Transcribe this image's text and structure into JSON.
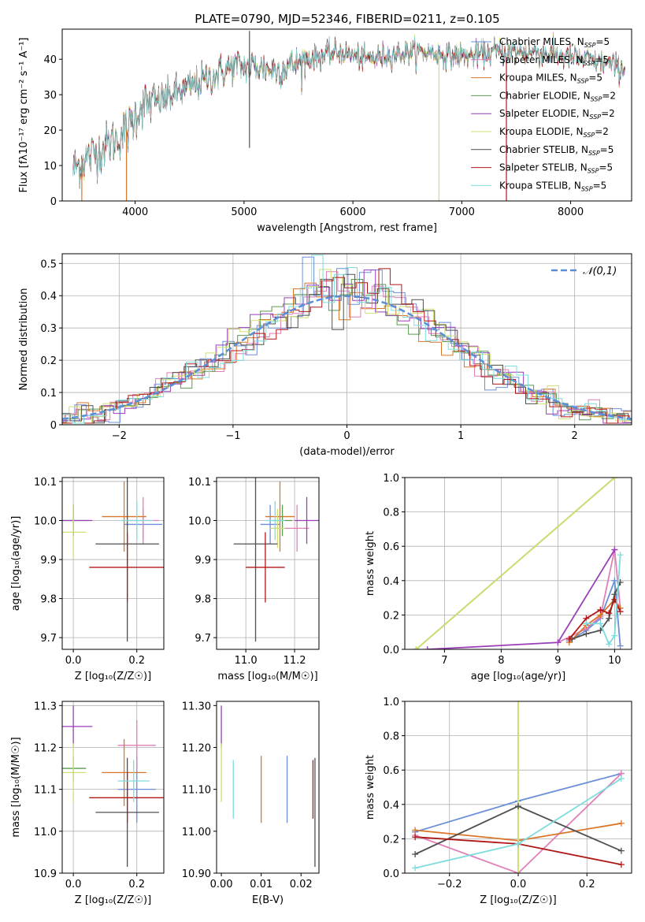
{
  "title": "PLATE=0790, MJD=52346, FIBERID=0211, z=0.105",
  "colors": {
    "Chabrier MILES": "#6a8fd8",
    "Salpeter MILES": "#e07fb8",
    "Kroupa MILES": "#d9762a",
    "Chabrier ELODIE": "#5a9a50",
    "Salpeter ELODIE": "#9a3fb8",
    "Kroupa ELODIE": "#cfe070",
    "Chabrier STELIB": "#505050",
    "Salpeter STELIB": "#b01818",
    "Kroupa STELIB": "#7fdcdc",
    "gauss": "#5b8ed6",
    "grid": "#b0b0b0"
  },
  "chart_data": [
    {
      "type": "line",
      "panel": "spectrum",
      "xlabel": "wavelength [Angstrom, rest frame]",
      "ylabel": "Flux [fλ10⁻¹⁷ erg cm⁻² s⁻¹ A⁻¹]",
      "xlim": [
        3330,
        8560
      ],
      "ylim": [
        0,
        48.5
      ],
      "xticks": [
        4000,
        5000,
        6000,
        7000,
        8000
      ],
      "yticks": [
        0,
        10,
        20,
        30,
        40
      ],
      "grid": false,
      "legend_position": "upper-right",
      "series": [
        {
          "name": "Chabrier MILES",
          "sub": "SSP",
          "nssp": "=5"
        },
        {
          "name": "Salpeter MILES",
          "sub": "SSP",
          "nssp": "=5"
        },
        {
          "name": "Kroupa MILES",
          "sub": "SSP",
          "nssp": "=5"
        },
        {
          "name": "Chabrier ELODIE",
          "sub": "SSP",
          "nssp": "=2"
        },
        {
          "name": "Salpeter ELODIE",
          "sub": "SSP",
          "nssp": "=2"
        },
        {
          "name": "Kroupa ELODIE",
          "sub": "SSP",
          "nssp": "=2"
        },
        {
          "name": "Chabrier STELIB",
          "sub": "SSP",
          "nssp": "=5"
        },
        {
          "name": "Salpeter STELIB",
          "sub": "SSP",
          "nssp": "=5"
        },
        {
          "name": "Kroupa STELIB",
          "sub": "SSP",
          "nssp": "=5"
        }
      ],
      "continuum": {
        "x": [
          3430,
          3550,
          3700,
          3850,
          3950,
          4050,
          4200,
          4350,
          4500,
          4700,
          4900,
          5100,
          5300,
          5500,
          5700,
          5900,
          6100,
          6300,
          6500,
          6700,
          6900,
          7100,
          7300,
          7500,
          7700,
          7900,
          8100,
          8300,
          8500
        ],
        "y": [
          9,
          12,
          15,
          18,
          21,
          27,
          28,
          30,
          32,
          35,
          38,
          38,
          37,
          39,
          41,
          42,
          40,
          41,
          42,
          42,
          41,
          41,
          42,
          42,
          42,
          41,
          40,
          39,
          37
        ]
      },
      "spikes": [
        {
          "x": 5050,
          "y0": 15,
          "y1": 48,
          "series": "Chabrier STELIB"
        },
        {
          "x": 6790,
          "y0": 0,
          "y1": 41,
          "series": "Kroupa ELODIE"
        },
        {
          "x": 7410,
          "y0": 0,
          "y1": 40,
          "series": "Salpeter STELIB"
        },
        {
          "x": 3920,
          "y0": 0,
          "y1": 20,
          "series": "Kroupa MILES"
        },
        {
          "x": 3510,
          "y0": 0,
          "y1": 10,
          "series": "Kroupa MILES"
        }
      ]
    },
    {
      "type": "histogram",
      "panel": "residuals",
      "xlabel": "(data-model)/error",
      "ylabel": "Normed distribution",
      "xlim": [
        -2.5,
        2.5
      ],
      "ylim": [
        0,
        0.53
      ],
      "xticks": [
        -2,
        -1,
        0,
        1,
        2
      ],
      "yticks": [
        0.0,
        0.1,
        0.2,
        0.3,
        0.4,
        0.5
      ],
      "grid": true,
      "legend_position": "upper-right",
      "gauss_label": "𝒩(0,1)",
      "bin_width": 0.1
    },
    {
      "type": "scatter",
      "panel": "age-vs-Z",
      "xlabel": "Z [log₁₀(Z/Z☉)]",
      "ylabel": "age  [log₁₀(age/yr)]",
      "xlim": [
        -0.035,
        0.285
      ],
      "ylim": [
        9.67,
        10.11
      ],
      "xticks": [
        0.0,
        0.2
      ],
      "yticks": [
        9.7,
        9.8,
        9.9,
        10.0,
        10.1
      ],
      "grid": true,
      "points": [
        {
          "series": "Chabrier MILES",
          "x": 0.22,
          "xerr": 0.06,
          "y": 9.99,
          "yerr": 0.04
        },
        {
          "series": "Salpeter MILES",
          "x": 0.22,
          "xerr": 0.05,
          "y": 10.0,
          "yerr": 0.06
        },
        {
          "series": "Kroupa MILES",
          "x": 0.16,
          "xerr": 0.07,
          "y": 10.01,
          "yerr": 0.09
        },
        {
          "series": "Chabrier ELODIE",
          "x": 0.0,
          "xerr": 0.05,
          "y": 10.0,
          "yerr": 0.04
        },
        {
          "series": "Salpeter ELODIE",
          "x": 0.0,
          "xerr": 0.06,
          "y": 10.0,
          "yerr": 0.04
        },
        {
          "series": "Kroupa ELODIE",
          "x": 0.0,
          "xerr": 0.04,
          "y": 9.97,
          "yerr": 0.07
        },
        {
          "series": "Chabrier STELIB",
          "x": 0.17,
          "xerr": 0.1,
          "y": 9.94,
          "yerr": 0.25
        },
        {
          "series": "Salpeter STELIB",
          "x": 0.17,
          "xerr": 0.12,
          "y": 9.88,
          "yerr": 0.09
        },
        {
          "series": "Kroupa STELIB",
          "x": 0.2,
          "xerr": 0.05,
          "y": 10.0,
          "yerr": 0.05
        }
      ]
    },
    {
      "type": "scatter",
      "panel": "age-vs-mass",
      "xlabel": "mass [log₁₀(M/M☉)]",
      "xlim": [
        10.88,
        11.3
      ],
      "ylim": [
        9.67,
        10.11
      ],
      "xticks": [
        11.0,
        11.2
      ],
      "yticks": [
        9.7,
        9.8,
        9.9,
        10.0,
        10.1
      ],
      "grid": true,
      "points": [
        {
          "series": "Chabrier MILES",
          "x": 11.1,
          "xerr": 0.04,
          "y": 9.99,
          "yerr": 0.05
        },
        {
          "series": "Salpeter MILES",
          "x": 11.21,
          "xerr": 0.05,
          "y": 9.98,
          "yerr": 0.06
        },
        {
          "series": "Kroupa MILES",
          "x": 11.14,
          "xerr": 0.06,
          "y": 10.01,
          "yerr": 0.09
        },
        {
          "series": "Chabrier ELODIE",
          "x": 11.15,
          "xerr": 0.04,
          "y": 10.0,
          "yerr": 0.04
        },
        {
          "series": "Salpeter ELODIE",
          "x": 11.25,
          "xerr": 0.05,
          "y": 10.0,
          "yerr": 0.06
        },
        {
          "series": "Kroupa ELODIE",
          "x": 11.13,
          "xerr": 0.03,
          "y": 9.98,
          "yerr": 0.05
        },
        {
          "series": "Chabrier STELIB",
          "x": 11.04,
          "xerr": 0.09,
          "y": 9.94,
          "yerr": 0.25
        },
        {
          "series": "Salpeter STELIB",
          "x": 11.08,
          "xerr": 0.08,
          "y": 9.88,
          "yerr": 0.09
        },
        {
          "series": "Kroupa STELIB",
          "x": 11.12,
          "xerr": 0.04,
          "y": 10.0,
          "yerr": 0.05
        }
      ]
    },
    {
      "type": "line",
      "panel": "weight-vs-age",
      "xlabel": "age  [log₁₀(age/yr)]",
      "ylabel": "mass weight",
      "xlim": [
        6.3,
        10.3
      ],
      "ylim": [
        0,
        1
      ],
      "xticks": [
        7,
        8,
        9,
        10
      ],
      "yticks": [
        0.0,
        0.2,
        0.4,
        0.6,
        0.8,
        1.0
      ],
      "grid": true,
      "series": [
        {
          "name": "Chabrier MILES",
          "x": [
            9.2,
            9.5,
            9.75,
            10.0,
            10.1
          ],
          "y": [
            0.05,
            0.11,
            0.18,
            0.4,
            0.02
          ]
        },
        {
          "name": "Salpeter MILES",
          "x": [
            9.0,
            9.5,
            9.75,
            10.0,
            10.1
          ],
          "y": [
            0.04,
            0.12,
            0.19,
            0.58,
            0.24
          ]
        },
        {
          "name": "Kroupa MILES",
          "x": [
            9.2,
            9.5,
            9.75,
            10.0,
            10.1
          ],
          "y": [
            0.04,
            0.14,
            0.2,
            0.29,
            0.24
          ]
        },
        {
          "name": "Chabrier ELODIE",
          "x": [
            6.5,
            10.0
          ],
          "y": [
            0.0,
            1.0
          ]
        },
        {
          "name": "Salpeter ELODIE",
          "x": [
            6.7,
            9.0,
            10.0
          ],
          "y": [
            0.0,
            0.04,
            0.58
          ]
        },
        {
          "name": "Kroupa ELODIE",
          "x": [
            6.5,
            10.0
          ],
          "y": [
            0.0,
            1.0
          ]
        },
        {
          "name": "Chabrier STELIB",
          "x": [
            9.25,
            9.5,
            9.75,
            9.9,
            10.0,
            10.1
          ],
          "y": [
            0.06,
            0.09,
            0.11,
            0.18,
            0.32,
            0.39
          ]
        },
        {
          "name": "Salpeter STELIB",
          "x": [
            9.2,
            9.5,
            9.75,
            9.9,
            10.0,
            10.1
          ],
          "y": [
            0.06,
            0.18,
            0.23,
            0.21,
            0.29,
            0.22
          ]
        },
        {
          "name": "Kroupa STELIB",
          "x": [
            9.5,
            9.75,
            9.9,
            10.0,
            10.1
          ],
          "y": [
            0.15,
            0.15,
            0.03,
            0.08,
            0.55
          ]
        }
      ]
    },
    {
      "type": "scatter",
      "panel": "mass-vs-Z",
      "xlabel": "Z [log₁₀(Z/Z☉)]",
      "ylabel": "mass [log₁₀(M/M☉)]",
      "xlim": [
        -0.035,
        0.285
      ],
      "ylim": [
        10.9,
        11.31
      ],
      "xticks": [
        0.0,
        0.2
      ],
      "yticks": [
        10.9,
        11.0,
        11.1,
        11.2,
        11.3
      ],
      "grid": true,
      "points": [
        {
          "series": "Chabrier MILES",
          "x": 0.2,
          "xerr": 0.06,
          "y": 11.1,
          "yerr": 0.08
        },
        {
          "series": "Salpeter MILES",
          "x": 0.2,
          "xerr": 0.06,
          "y": 11.205,
          "yerr": 0.06
        },
        {
          "series": "Kroupa MILES",
          "x": 0.16,
          "xerr": 0.07,
          "y": 11.14,
          "yerr": 0.08
        },
        {
          "series": "Chabrier ELODIE",
          "x": 0.0,
          "xerr": 0.04,
          "y": 11.15,
          "yerr": 0.03
        },
        {
          "series": "Salpeter ELODIE",
          "x": 0.0,
          "xerr": 0.06,
          "y": 11.25,
          "yerr": 0.05
        },
        {
          "series": "Kroupa ELODIE",
          "x": 0.0,
          "xerr": 0.04,
          "y": 11.14,
          "yerr": 0.07
        },
        {
          "series": "Chabrier STELIB",
          "x": 0.17,
          "xerr": 0.1,
          "y": 11.045,
          "yerr": 0.13
        },
        {
          "series": "Salpeter STELIB",
          "x": 0.17,
          "xerr": 0.12,
          "y": 11.08,
          "yerr": 0.06
        },
        {
          "series": "Kroupa STELIB",
          "x": 0.19,
          "xerr": 0.05,
          "y": 11.12,
          "yerr": 0.05
        }
      ]
    },
    {
      "type": "scatter",
      "panel": "mass-vs-EBV",
      "xlabel": "E(B-V)",
      "xlim": [
        -0.0012,
        0.0245
      ],
      "ylim": [
        10.9,
        11.31
      ],
      "xticks": [
        0.0,
        0.01,
        0.02
      ],
      "yticks": [
        10.9,
        11.0,
        11.1,
        11.2,
        11.3
      ],
      "grid": false,
      "points": [
        {
          "series": "Chabrier MILES",
          "x": 0.0165,
          "y": 11.1,
          "yerr": 0.08
        },
        {
          "series": "Kroupa MILES",
          "x": 0.01,
          "y": 11.1,
          "yerr": 0.08
        },
        {
          "series": "Salpeter ELODIE",
          "x": 0.0,
          "y": 11.25,
          "yerr": 0.05
        },
        {
          "series": "Kroupa ELODIE",
          "x": 0.0,
          "y": 11.14,
          "yerr": 0.07
        },
        {
          "series": "Kroupa STELIB",
          "x": 0.003,
          "y": 11.1,
          "yerr": 0.07
        },
        {
          "series": "Chabrier STELIB",
          "x": 0.0235,
          "y": 11.045,
          "yerr": 0.13
        },
        {
          "series": "Salpeter STELIB",
          "x": 0.023,
          "y": 11.1,
          "yerr": 0.07
        }
      ]
    },
    {
      "type": "line",
      "panel": "weight-vs-Z",
      "xlabel": "Z [log₁₀(Z/Z☉)]",
      "ylabel": "mass weight",
      "xlim": [
        -0.33,
        0.33
      ],
      "ylim": [
        0,
        1
      ],
      "xticks": [
        -0.2,
        0.0,
        0.2
      ],
      "yticks": [
        0.0,
        0.2,
        0.4,
        0.6,
        0.8,
        1.0
      ],
      "grid": true,
      "series": [
        {
          "name": "Chabrier MILES",
          "x": [
            -0.3,
            0.0,
            0.3
          ],
          "y": [
            0.24,
            0.42,
            0.58
          ]
        },
        {
          "name": "Salpeter MILES",
          "x": [
            -0.3,
            0.0,
            0.3
          ],
          "y": [
            0.22,
            0.0,
            0.58
          ]
        },
        {
          "name": "Kroupa MILES",
          "x": [
            -0.3,
            0.0,
            0.3
          ],
          "y": [
            0.25,
            0.19,
            0.29
          ]
        },
        {
          "name": "Chabrier ELODIE",
          "x": [
            0.0
          ],
          "y": [
            1.0
          ]
        },
        {
          "name": "Salpeter ELODIE",
          "x": [
            0.0
          ],
          "y": [
            1.0
          ]
        },
        {
          "name": "Kroupa ELODIE",
          "x": [
            0.0
          ],
          "y": [
            1.0
          ]
        },
        {
          "name": "Chabrier STELIB",
          "x": [
            -0.3,
            0.0,
            0.3
          ],
          "y": [
            0.11,
            0.39,
            0.13
          ]
        },
        {
          "name": "Salpeter STELIB",
          "x": [
            -0.3,
            0.0,
            0.3
          ],
          "y": [
            0.21,
            0.17,
            0.05
          ]
        },
        {
          "name": "Kroupa STELIB",
          "x": [
            -0.3,
            0.0,
            0.3
          ],
          "y": [
            0.03,
            0.17,
            0.55
          ]
        }
      ]
    }
  ]
}
